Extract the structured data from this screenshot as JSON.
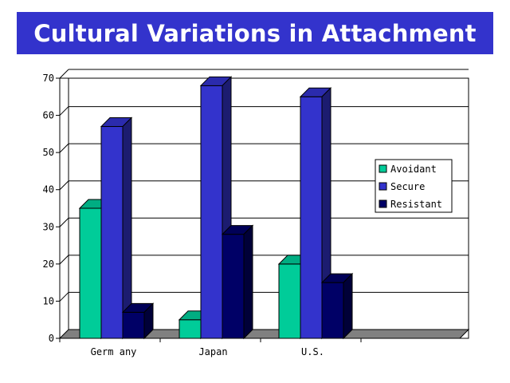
{
  "title": "Cultural Variations in Attachment",
  "chart_data": {
    "type": "bar",
    "categories": [
      "Germany",
      "Japan",
      "U.S."
    ],
    "category_labels": [
      "Germ any",
      "Japan",
      "U.S."
    ],
    "series": [
      {
        "name": "Avoidant",
        "values": [
          35,
          5,
          20
        ],
        "color": "#00cc99"
      },
      {
        "name": "Secure",
        "values": [
          57,
          68,
          65
        ],
        "color": "#3333cc"
      },
      {
        "name": "Resistant",
        "values": [
          7,
          28,
          15
        ],
        "color": "#000066"
      }
    ],
    "ylim": [
      0,
      70
    ],
    "yticks": [
      0,
      10,
      20,
      30,
      40,
      50,
      60,
      70
    ],
    "ytick_labels": [
      "0",
      "10",
      "20",
      "30",
      "40",
      "50",
      "60",
      "70"
    ],
    "grid": true,
    "legend_position": "right",
    "style": "3d-bar"
  }
}
